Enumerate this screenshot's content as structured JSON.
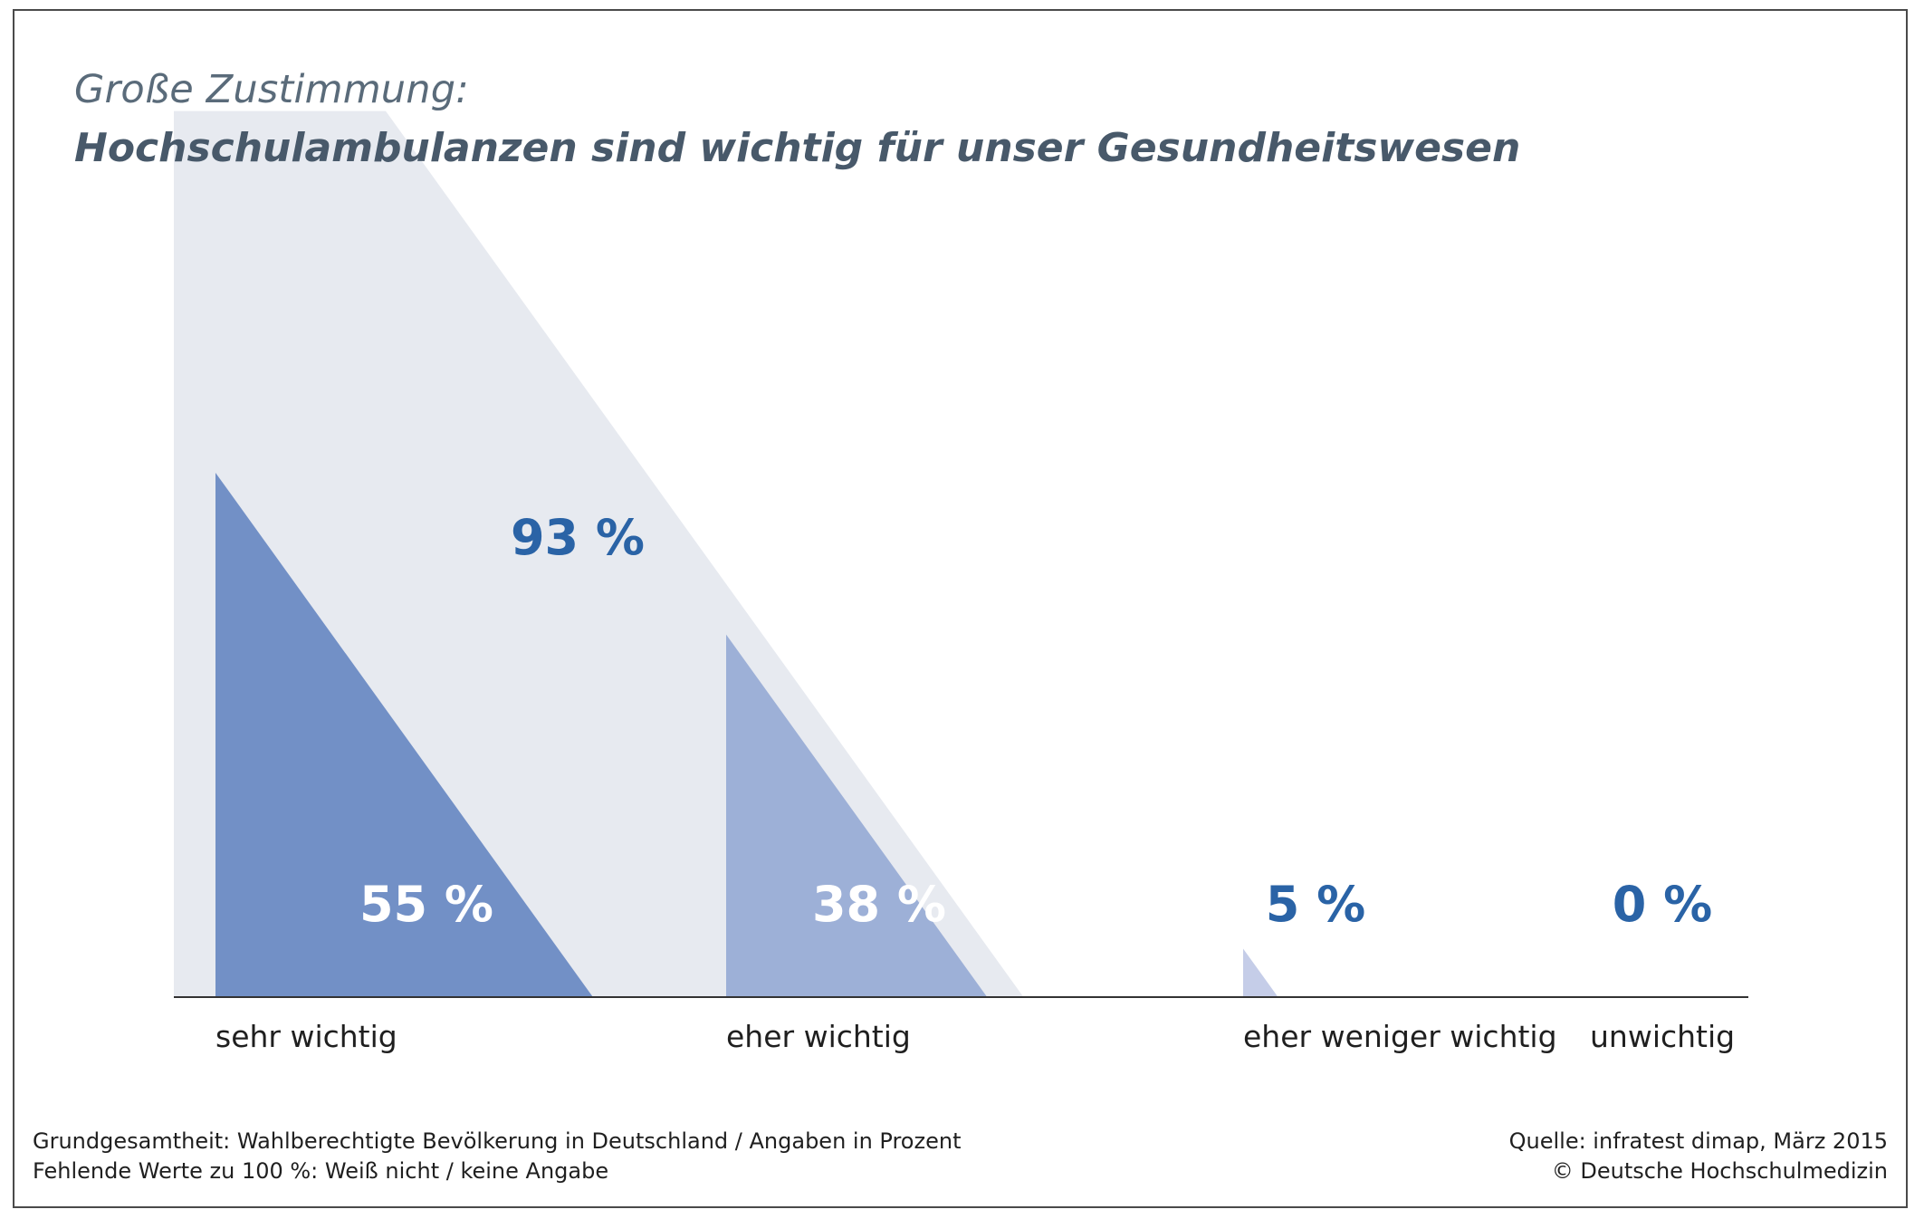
{
  "title": {
    "line1": "Große Zustimmung:",
    "line2": "Hochschulambulanzen sind wichtig für unser Gesundheitswesen"
  },
  "chart_data": {
    "type": "bar",
    "title": "Große Zustimmung: Hochschulambulanzen sind wichtig für unser Gesundheitswesen",
    "unit": "%",
    "categories": [
      "sehr wichtig",
      "eher wichtig",
      "eher weniger wichtig",
      "unwichtig"
    ],
    "values": [
      55,
      38,
      5,
      0
    ],
    "value_labels": [
      "55 %",
      "38 %",
      "5 %",
      "0 %"
    ],
    "total": {
      "value": 93,
      "label": "93 %",
      "covers": [
        "sehr wichtig",
        "eher wichtig"
      ]
    },
    "ylim": [
      0,
      100
    ],
    "grid": false,
    "legend": "none",
    "colors": {
      "bars": [
        "#7290c6",
        "#9db0d7",
        "#c5cde8",
        "#dde2f0"
      ],
      "total_band": "#e7eaf0",
      "value_label_on_bar": "#ffffff",
      "value_label_off_bar": "#2a63a6",
      "axis": "#333333"
    }
  },
  "footer": {
    "left_line1": "Grundgesamtheit: Wahlberechtigte Bevölkerung in Deutschland / Angaben in Prozent",
    "left_line2": "Fehlende Werte zu 100 %: Weiß nicht / keine Angabe",
    "right_line1": "Quelle: infratest dimap, März 2015",
    "right_line2": "© Deutsche Hochschulmedizin"
  }
}
